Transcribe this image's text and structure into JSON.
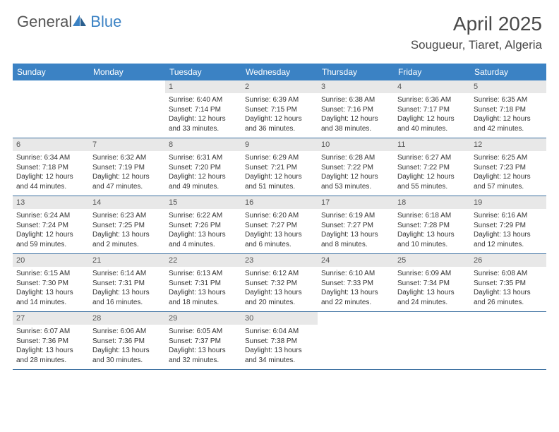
{
  "brand": {
    "word1": "General",
    "word2": "Blue"
  },
  "header": {
    "month_title": "April 2025",
    "location": "Sougueur, Tiaret, Algeria"
  },
  "colors": {
    "header_bg": "#3b82c4",
    "header_text": "#ffffff",
    "daynum_bg": "#e8e8e8",
    "row_border": "#3b6fa0",
    "body_text": "#333333",
    "title_text": "#4a4a4a"
  },
  "calendar": {
    "day_headers": [
      "Sunday",
      "Monday",
      "Tuesday",
      "Wednesday",
      "Thursday",
      "Friday",
      "Saturday"
    ],
    "weeks": [
      [
        {
          "num": "",
          "sunrise": "",
          "sunset": "",
          "daylight": "",
          "empty": true
        },
        {
          "num": "",
          "sunrise": "",
          "sunset": "",
          "daylight": "",
          "empty": true
        },
        {
          "num": "1",
          "sunrise": "Sunrise: 6:40 AM",
          "sunset": "Sunset: 7:14 PM",
          "daylight": "Daylight: 12 hours and 33 minutes."
        },
        {
          "num": "2",
          "sunrise": "Sunrise: 6:39 AM",
          "sunset": "Sunset: 7:15 PM",
          "daylight": "Daylight: 12 hours and 36 minutes."
        },
        {
          "num": "3",
          "sunrise": "Sunrise: 6:38 AM",
          "sunset": "Sunset: 7:16 PM",
          "daylight": "Daylight: 12 hours and 38 minutes."
        },
        {
          "num": "4",
          "sunrise": "Sunrise: 6:36 AM",
          "sunset": "Sunset: 7:17 PM",
          "daylight": "Daylight: 12 hours and 40 minutes."
        },
        {
          "num": "5",
          "sunrise": "Sunrise: 6:35 AM",
          "sunset": "Sunset: 7:18 PM",
          "daylight": "Daylight: 12 hours and 42 minutes."
        }
      ],
      [
        {
          "num": "6",
          "sunrise": "Sunrise: 6:34 AM",
          "sunset": "Sunset: 7:18 PM",
          "daylight": "Daylight: 12 hours and 44 minutes."
        },
        {
          "num": "7",
          "sunrise": "Sunrise: 6:32 AM",
          "sunset": "Sunset: 7:19 PM",
          "daylight": "Daylight: 12 hours and 47 minutes."
        },
        {
          "num": "8",
          "sunrise": "Sunrise: 6:31 AM",
          "sunset": "Sunset: 7:20 PM",
          "daylight": "Daylight: 12 hours and 49 minutes."
        },
        {
          "num": "9",
          "sunrise": "Sunrise: 6:29 AM",
          "sunset": "Sunset: 7:21 PM",
          "daylight": "Daylight: 12 hours and 51 minutes."
        },
        {
          "num": "10",
          "sunrise": "Sunrise: 6:28 AM",
          "sunset": "Sunset: 7:22 PM",
          "daylight": "Daylight: 12 hours and 53 minutes."
        },
        {
          "num": "11",
          "sunrise": "Sunrise: 6:27 AM",
          "sunset": "Sunset: 7:22 PM",
          "daylight": "Daylight: 12 hours and 55 minutes."
        },
        {
          "num": "12",
          "sunrise": "Sunrise: 6:25 AM",
          "sunset": "Sunset: 7:23 PM",
          "daylight": "Daylight: 12 hours and 57 minutes."
        }
      ],
      [
        {
          "num": "13",
          "sunrise": "Sunrise: 6:24 AM",
          "sunset": "Sunset: 7:24 PM",
          "daylight": "Daylight: 12 hours and 59 minutes."
        },
        {
          "num": "14",
          "sunrise": "Sunrise: 6:23 AM",
          "sunset": "Sunset: 7:25 PM",
          "daylight": "Daylight: 13 hours and 2 minutes."
        },
        {
          "num": "15",
          "sunrise": "Sunrise: 6:22 AM",
          "sunset": "Sunset: 7:26 PM",
          "daylight": "Daylight: 13 hours and 4 minutes."
        },
        {
          "num": "16",
          "sunrise": "Sunrise: 6:20 AM",
          "sunset": "Sunset: 7:27 PM",
          "daylight": "Daylight: 13 hours and 6 minutes."
        },
        {
          "num": "17",
          "sunrise": "Sunrise: 6:19 AM",
          "sunset": "Sunset: 7:27 PM",
          "daylight": "Daylight: 13 hours and 8 minutes."
        },
        {
          "num": "18",
          "sunrise": "Sunrise: 6:18 AM",
          "sunset": "Sunset: 7:28 PM",
          "daylight": "Daylight: 13 hours and 10 minutes."
        },
        {
          "num": "19",
          "sunrise": "Sunrise: 6:16 AM",
          "sunset": "Sunset: 7:29 PM",
          "daylight": "Daylight: 13 hours and 12 minutes."
        }
      ],
      [
        {
          "num": "20",
          "sunrise": "Sunrise: 6:15 AM",
          "sunset": "Sunset: 7:30 PM",
          "daylight": "Daylight: 13 hours and 14 minutes."
        },
        {
          "num": "21",
          "sunrise": "Sunrise: 6:14 AM",
          "sunset": "Sunset: 7:31 PM",
          "daylight": "Daylight: 13 hours and 16 minutes."
        },
        {
          "num": "22",
          "sunrise": "Sunrise: 6:13 AM",
          "sunset": "Sunset: 7:31 PM",
          "daylight": "Daylight: 13 hours and 18 minutes."
        },
        {
          "num": "23",
          "sunrise": "Sunrise: 6:12 AM",
          "sunset": "Sunset: 7:32 PM",
          "daylight": "Daylight: 13 hours and 20 minutes."
        },
        {
          "num": "24",
          "sunrise": "Sunrise: 6:10 AM",
          "sunset": "Sunset: 7:33 PM",
          "daylight": "Daylight: 13 hours and 22 minutes."
        },
        {
          "num": "25",
          "sunrise": "Sunrise: 6:09 AM",
          "sunset": "Sunset: 7:34 PM",
          "daylight": "Daylight: 13 hours and 24 minutes."
        },
        {
          "num": "26",
          "sunrise": "Sunrise: 6:08 AM",
          "sunset": "Sunset: 7:35 PM",
          "daylight": "Daylight: 13 hours and 26 minutes."
        }
      ],
      [
        {
          "num": "27",
          "sunrise": "Sunrise: 6:07 AM",
          "sunset": "Sunset: 7:36 PM",
          "daylight": "Daylight: 13 hours and 28 minutes."
        },
        {
          "num": "28",
          "sunrise": "Sunrise: 6:06 AM",
          "sunset": "Sunset: 7:36 PM",
          "daylight": "Daylight: 13 hours and 30 minutes."
        },
        {
          "num": "29",
          "sunrise": "Sunrise: 6:05 AM",
          "sunset": "Sunset: 7:37 PM",
          "daylight": "Daylight: 13 hours and 32 minutes."
        },
        {
          "num": "30",
          "sunrise": "Sunrise: 6:04 AM",
          "sunset": "Sunset: 7:38 PM",
          "daylight": "Daylight: 13 hours and 34 minutes."
        },
        {
          "num": "",
          "sunrise": "",
          "sunset": "",
          "daylight": "",
          "empty": true
        },
        {
          "num": "",
          "sunrise": "",
          "sunset": "",
          "daylight": "",
          "empty": true
        },
        {
          "num": "",
          "sunrise": "",
          "sunset": "",
          "daylight": "",
          "empty": true
        }
      ]
    ]
  }
}
